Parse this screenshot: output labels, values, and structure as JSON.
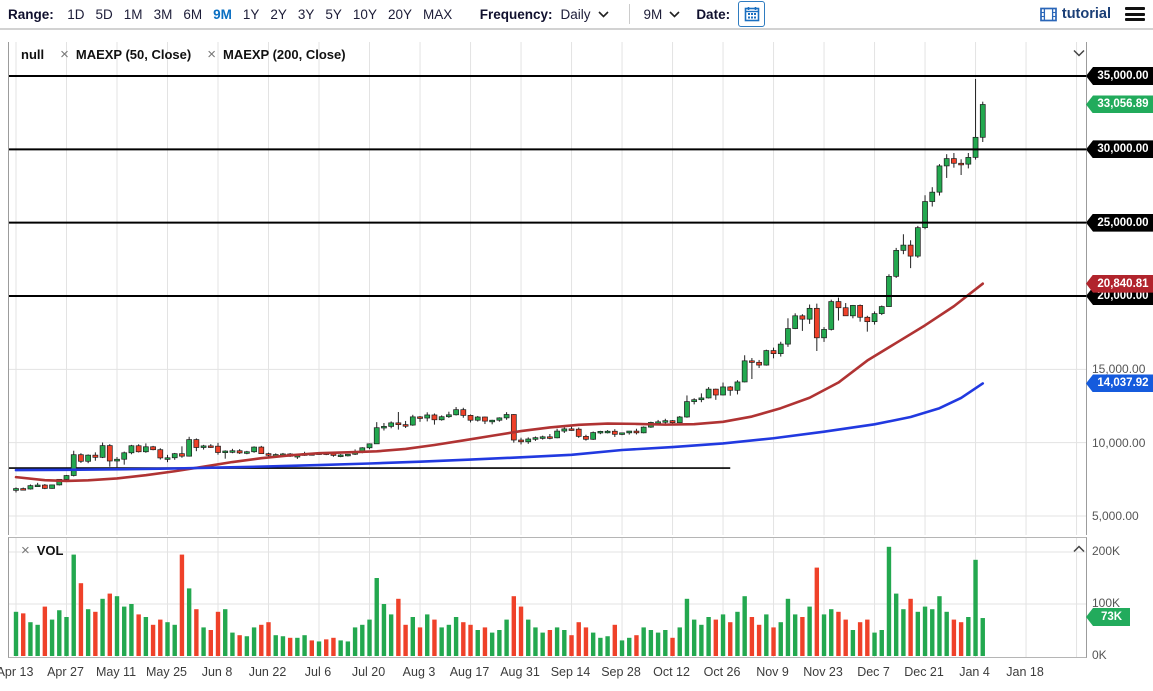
{
  "toolbar": {
    "range_label": "Range:",
    "range_options": [
      "1D",
      "5D",
      "1M",
      "3M",
      "6M",
      "9M",
      "1Y",
      "2Y",
      "3Y",
      "5Y",
      "10Y",
      "20Y",
      "MAX"
    ],
    "range_selected": "9M",
    "frequency_label": "Frequency:",
    "frequency_value": "Daily",
    "period_value": "9M",
    "date_label": "Date:",
    "tutorial_label": "tutorial"
  },
  "legend": {
    "series": [
      {
        "label": "null"
      },
      {
        "label": "MAEXP (50, Close)"
      },
      {
        "label": "MAEXP (200, Close)"
      }
    ]
  },
  "volume_panel": {
    "label": "VOL"
  },
  "colors": {
    "up": "#23a84f",
    "down": "#ef4129",
    "ma50": "#b03333",
    "ma200": "#2139e0",
    "grid": "#e3e3e3",
    "level_line": "#000000",
    "tag_level": "#000000",
    "tag_last": "#22ab5c",
    "tag_ma50": "#b1242c",
    "tag_ma200": "#155bdd",
    "tag_volume": "#22ab5c"
  },
  "chart_data": {
    "type": "candlestick",
    "title": "",
    "x_ticks": [
      {
        "day": 0,
        "label": "Apr 13"
      },
      {
        "day": 14,
        "label": "Apr 27"
      },
      {
        "day": 28,
        "label": "May 11"
      },
      {
        "day": 42,
        "label": "May 25"
      },
      {
        "day": 56,
        "label": "Jun 8"
      },
      {
        "day": 70,
        "label": "Jun 22"
      },
      {
        "day": 84,
        "label": "Jul 6"
      },
      {
        "day": 98,
        "label": "Jul 20"
      },
      {
        "day": 112,
        "label": "Aug 3"
      },
      {
        "day": 126,
        "label": "Aug 17"
      },
      {
        "day": 140,
        "label": "Aug 31"
      },
      {
        "day": 154,
        "label": "Sep 14"
      },
      {
        "day": 168,
        "label": "Sep 28"
      },
      {
        "day": 182,
        "label": "Oct 12"
      },
      {
        "day": 196,
        "label": "Oct 26"
      },
      {
        "day": 210,
        "label": "Nov 9"
      },
      {
        "day": 224,
        "label": "Nov 23"
      },
      {
        "day": 238,
        "label": "Dec 7"
      },
      {
        "day": 252,
        "label": "Dec 21"
      },
      {
        "day": 266,
        "label": "Jan 4"
      },
      {
        "day": 280,
        "label": "Jan 18"
      },
      {
        "day": 294,
        "label": ""
      }
    ],
    "y_axis": {
      "plain_levels": [
        {
          "value": 15000,
          "label": "15,000.00"
        },
        {
          "value": 10000,
          "label": "10,000.00"
        },
        {
          "value": 5000,
          "label": "5,000.00"
        }
      ],
      "drawn_levels": [
        {
          "value": 35000,
          "label": "35,000.00"
        },
        {
          "value": 30000,
          "label": "30,000.00"
        },
        {
          "value": 25000,
          "label": "25,000.00"
        },
        {
          "value": 20000,
          "label": "20,000.00"
        }
      ]
    },
    "tags": {
      "last_price": {
        "value": 33056.89,
        "label": "33,056.89"
      },
      "ma50": {
        "value": 20840.81,
        "label": "20,840.81"
      },
      "ma200": {
        "value": 14037.92,
        "label": "14,037.92"
      },
      "volume": {
        "value": 73,
        "label": "73K"
      }
    },
    "volume_axis": {
      "ticks": [
        {
          "value": 200,
          "label": "200K"
        },
        {
          "value": 100,
          "label": "100K"
        },
        {
          "value": 0,
          "label": "0K"
        }
      ]
    },
    "trendline": {
      "price": 8270,
      "day_start": -2,
      "day_end": 198
    },
    "ma50": [
      [
        0,
        7650
      ],
      [
        8,
        7440
      ],
      [
        14,
        7390
      ],
      [
        20,
        7430
      ],
      [
        28,
        7560
      ],
      [
        36,
        7780
      ],
      [
        44,
        8050
      ],
      [
        52,
        8360
      ],
      [
        60,
        8680
      ],
      [
        68,
        8940
      ],
      [
        76,
        9140
      ],
      [
        84,
        9280
      ],
      [
        92,
        9340
      ],
      [
        100,
        9410
      ],
      [
        108,
        9570
      ],
      [
        116,
        9840
      ],
      [
        124,
        10150
      ],
      [
        132,
        10470
      ],
      [
        140,
        10790
      ],
      [
        148,
        11040
      ],
      [
        156,
        11220
      ],
      [
        164,
        11300
      ],
      [
        172,
        11280
      ],
      [
        180,
        11230
      ],
      [
        188,
        11260
      ],
      [
        196,
        11420
      ],
      [
        204,
        11780
      ],
      [
        212,
        12350
      ],
      [
        220,
        13060
      ],
      [
        228,
        14100
      ],
      [
        236,
        15600
      ],
      [
        244,
        16800
      ],
      [
        252,
        18000
      ],
      [
        260,
        19300
      ],
      [
        268,
        20841
      ]
    ],
    "ma200": [
      [
        0,
        8130
      ],
      [
        14,
        8150
      ],
      [
        28,
        8180
      ],
      [
        42,
        8230
      ],
      [
        56,
        8300
      ],
      [
        70,
        8380
      ],
      [
        84,
        8470
      ],
      [
        98,
        8580
      ],
      [
        112,
        8700
      ],
      [
        126,
        8850
      ],
      [
        140,
        9000
      ],
      [
        154,
        9170
      ],
      [
        168,
        9500
      ],
      [
        182,
        9700
      ],
      [
        196,
        9950
      ],
      [
        210,
        10300
      ],
      [
        224,
        10750
      ],
      [
        238,
        11250
      ],
      [
        248,
        11750
      ],
      [
        256,
        12350
      ],
      [
        262,
        13050
      ],
      [
        268,
        14038
      ]
    ],
    "candles": [
      [
        0,
        6750,
        6950,
        6600,
        6870,
        85
      ],
      [
        2,
        6870,
        6940,
        6760,
        6840,
        82
      ],
      [
        4,
        6840,
        7150,
        6800,
        7070,
        65
      ],
      [
        6,
        7070,
        7260,
        7000,
        7110,
        60
      ],
      [
        8,
        7110,
        7180,
        6830,
        6880,
        95
      ],
      [
        10,
        6880,
        7130,
        6860,
        7120,
        70
      ],
      [
        12,
        7120,
        7520,
        7080,
        7500,
        88
      ],
      [
        14,
        7500,
        7800,
        7380,
        7760,
        75
      ],
      [
        16,
        7760,
        9450,
        7700,
        9180,
        195
      ],
      [
        18,
        9180,
        9280,
        8620,
        8730,
        140
      ],
      [
        20,
        8730,
        9200,
        8600,
        9150,
        90
      ],
      [
        22,
        9150,
        9340,
        8770,
        9000,
        85
      ],
      [
        24,
        9000,
        10010,
        8950,
        9800,
        110
      ],
      [
        26,
        9800,
        9900,
        8360,
        8750,
        120
      ],
      [
        28,
        8750,
        9020,
        8220,
        8870,
        115
      ],
      [
        30,
        8870,
        9390,
        8500,
        9310,
        95
      ],
      [
        32,
        9310,
        9850,
        9210,
        9790,
        100
      ],
      [
        34,
        9790,
        9890,
        9330,
        9380,
        80
      ],
      [
        36,
        9380,
        9950,
        9310,
        9720,
        75
      ],
      [
        38,
        9720,
        9780,
        9480,
        9520,
        60
      ],
      [
        40,
        9520,
        9620,
        8850,
        8960,
        70
      ],
      [
        42,
        8960,
        9170,
        8670,
        8970,
        65
      ],
      [
        44,
        8970,
        9300,
        8830,
        9250,
        60
      ],
      [
        46,
        9250,
        9750,
        8970,
        9080,
        195
      ],
      [
        48,
        9080,
        10400,
        9050,
        10210,
        130
      ],
      [
        50,
        10210,
        10290,
        9420,
        9670,
        90
      ],
      [
        52,
        9670,
        9850,
        9530,
        9780,
        55
      ],
      [
        54,
        9780,
        9900,
        9640,
        9760,
        50
      ],
      [
        56,
        9760,
        9990,
        9180,
        9330,
        85
      ],
      [
        58,
        9330,
        9480,
        8910,
        9430,
        90
      ],
      [
        60,
        9430,
        9580,
        9280,
        9450,
        45
      ],
      [
        62,
        9450,
        9560,
        9230,
        9300,
        40
      ],
      [
        64,
        9300,
        9440,
        9210,
        9380,
        38
      ],
      [
        66,
        9380,
        9750,
        9310,
        9700,
        55
      ],
      [
        68,
        9700,
        9780,
        9230,
        9250,
        60
      ],
      [
        70,
        9250,
        9320,
        8940,
        9140,
        65
      ],
      [
        72,
        9140,
        9270,
        9050,
        9190,
        40
      ],
      [
        74,
        9190,
        9300,
        9080,
        9230,
        38
      ],
      [
        76,
        9230,
        9290,
        9030,
        9070,
        35
      ],
      [
        78,
        9070,
        9130,
        8890,
        9130,
        35
      ],
      [
        80,
        9130,
        9380,
        9100,
        9250,
        40
      ],
      [
        82,
        9250,
        9290,
        9140,
        9240,
        30
      ],
      [
        84,
        9240,
        9310,
        9170,
        9300,
        28
      ],
      [
        86,
        9300,
        9340,
        9150,
        9240,
        32
      ],
      [
        88,
        9240,
        9280,
        9040,
        9150,
        35
      ],
      [
        90,
        9150,
        9220,
        9010,
        9160,
        30
      ],
      [
        92,
        9160,
        9230,
        9060,
        9210,
        28
      ],
      [
        94,
        9210,
        9540,
        9160,
        9390,
        55
      ],
      [
        96,
        9390,
        9690,
        9280,
        9650,
        60
      ],
      [
        98,
        9650,
        9950,
        9550,
        9920,
        70
      ],
      [
        100,
        9920,
        11400,
        9910,
        11020,
        150
      ],
      [
        102,
        11020,
        11340,
        10830,
        11110,
        100
      ],
      [
        104,
        11110,
        11450,
        10980,
        11350,
        80
      ],
      [
        106,
        11350,
        12090,
        10890,
        11230,
        110
      ],
      [
        108,
        11230,
        11480,
        11000,
        11200,
        60
      ],
      [
        110,
        11200,
        11900,
        11150,
        11760,
        75
      ],
      [
        112,
        11760,
        11820,
        11420,
        11680,
        55
      ],
      [
        114,
        11680,
        12070,
        11450,
        11890,
        80
      ],
      [
        116,
        11890,
        11990,
        11230,
        11560,
        70
      ],
      [
        118,
        11560,
        11860,
        11500,
        11770,
        55
      ],
      [
        120,
        11770,
        12110,
        11690,
        11900,
        60
      ],
      [
        122,
        11900,
        12430,
        11850,
        12250,
        75
      ],
      [
        124,
        12250,
        12380,
        11700,
        11860,
        65
      ],
      [
        126,
        11860,
        11920,
        11380,
        11530,
        60
      ],
      [
        128,
        11530,
        11820,
        11440,
        11750,
        50
      ],
      [
        130,
        11750,
        11780,
        11270,
        11470,
        55
      ],
      [
        132,
        11470,
        11560,
        11250,
        11530,
        45
      ],
      [
        134,
        11530,
        11730,
        11430,
        11690,
        50
      ],
      [
        136,
        11690,
        12080,
        11560,
        11920,
        70
      ],
      [
        138,
        11920,
        11950,
        10000,
        10180,
        115
      ],
      [
        140,
        10180,
        10340,
        9880,
        10060,
        95
      ],
      [
        142,
        10060,
        10360,
        9920,
        10250,
        70
      ],
      [
        144,
        10250,
        10420,
        10120,
        10340,
        55
      ],
      [
        146,
        10340,
        10480,
        10210,
        10400,
        45
      ],
      [
        148,
        10400,
        10590,
        10230,
        10330,
        50
      ],
      [
        150,
        10330,
        10950,
        10300,
        10790,
        55
      ],
      [
        152,
        10790,
        11060,
        10660,
        10940,
        50
      ],
      [
        154,
        10940,
        11180,
        10810,
        10920,
        40
      ],
      [
        156,
        10920,
        11030,
        10330,
        10430,
        65
      ],
      [
        158,
        10430,
        10540,
        10140,
        10230,
        55
      ],
      [
        160,
        10230,
        10760,
        10190,
        10690,
        45
      ],
      [
        162,
        10690,
        10810,
        10580,
        10770,
        35
      ],
      [
        164,
        10770,
        10860,
        10630,
        10780,
        38
      ],
      [
        166,
        10780,
        10920,
        10390,
        10570,
        60
      ],
      [
        168,
        10570,
        10690,
        10510,
        10670,
        30
      ],
      [
        170,
        10670,
        10800,
        10550,
        10790,
        35
      ],
      [
        172,
        10790,
        10950,
        10560,
        10670,
        40
      ],
      [
        174,
        10670,
        11110,
        10640,
        11060,
        55
      ],
      [
        176,
        11060,
        11430,
        11010,
        11380,
        50
      ],
      [
        178,
        11380,
        11550,
        11310,
        11420,
        45
      ],
      [
        180,
        11420,
        11630,
        11280,
        11500,
        50
      ],
      [
        182,
        11500,
        11540,
        11270,
        11360,
        35
      ],
      [
        184,
        11360,
        11820,
        11330,
        11750,
        55
      ],
      [
        186,
        11750,
        13220,
        11700,
        12800,
        110
      ],
      [
        188,
        12800,
        13030,
        12610,
        12930,
        70
      ],
      [
        190,
        12930,
        13360,
        12760,
        13050,
        60
      ],
      [
        192,
        13050,
        13790,
        13010,
        13650,
        75
      ],
      [
        194,
        13650,
        13680,
        12920,
        13250,
        70
      ],
      [
        196,
        13250,
        14100,
        13220,
        13800,
        80
      ],
      [
        198,
        13800,
        13860,
        13200,
        13570,
        65
      ],
      [
        200,
        13570,
        14260,
        13290,
        14140,
        85
      ],
      [
        202,
        14140,
        15960,
        14110,
        15580,
        115
      ],
      [
        204,
        15580,
        15770,
        14340,
        15480,
        75
      ],
      [
        206,
        15480,
        15640,
        15090,
        15290,
        60
      ],
      [
        208,
        15290,
        16340,
        15250,
        16280,
        80
      ],
      [
        210,
        16280,
        16480,
        15750,
        16070,
        55
      ],
      [
        212,
        16070,
        16880,
        15870,
        16720,
        65
      ],
      [
        214,
        16720,
        18480,
        16530,
        17780,
        110
      ],
      [
        216,
        17780,
        18820,
        17740,
        18650,
        80
      ],
      [
        218,
        18650,
        18760,
        17620,
        18420,
        75
      ],
      [
        220,
        18420,
        19420,
        18100,
        19160,
        95
      ],
      [
        222,
        19160,
        19480,
        16250,
        17150,
        170
      ],
      [
        224,
        17150,
        17880,
        16870,
        17720,
        80
      ],
      [
        226,
        17720,
        19750,
        17650,
        19620,
        90
      ],
      [
        228,
        19620,
        19890,
        18330,
        19200,
        85
      ],
      [
        230,
        19200,
        19520,
        18650,
        18650,
        70
      ],
      [
        232,
        18650,
        19390,
        18480,
        19360,
        50
      ],
      [
        234,
        19360,
        19420,
        18250,
        18550,
        65
      ],
      [
        236,
        18550,
        18650,
        17570,
        18250,
        70
      ],
      [
        238,
        18250,
        18950,
        18050,
        18800,
        45
      ],
      [
        240,
        18800,
        19350,
        18700,
        19280,
        50
      ],
      [
        242,
        19280,
        21480,
        19270,
        21340,
        210
      ],
      [
        244,
        21340,
        23280,
        21230,
        23110,
        120
      ],
      [
        246,
        23110,
        24210,
        22850,
        23470,
        90
      ],
      [
        248,
        23470,
        23800,
        21900,
        22720,
        110
      ],
      [
        250,
        22720,
        24780,
        22600,
        24660,
        85
      ],
      [
        252,
        24660,
        26870,
        24550,
        26440,
        95
      ],
      [
        254,
        26440,
        27420,
        26100,
        27080,
        90
      ],
      [
        256,
        27080,
        28990,
        26850,
        28870,
        115
      ],
      [
        258,
        28870,
        29670,
        28050,
        29370,
        85
      ],
      [
        260,
        29370,
        29750,
        28750,
        29050,
        70
      ],
      [
        262,
        29050,
        29320,
        28250,
        28990,
        65
      ],
      [
        264,
        28990,
        29750,
        28700,
        29450,
        75
      ],
      [
        266,
        29450,
        34800,
        29300,
        30820,
        185
      ],
      [
        268,
        30820,
        33250,
        30500,
        33056.89,
        73
      ]
    ]
  }
}
